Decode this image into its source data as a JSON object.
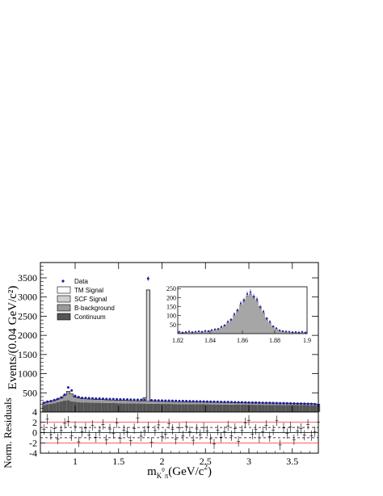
{
  "chart_data": [
    {
      "type": "area",
      "ylabel": "Events/(0.04 GeV/c²)",
      "xlim": [
        0.6,
        3.8
      ],
      "ylim": [
        0,
        3900
      ],
      "y_ticks": [
        "500",
        "1000",
        "1500",
        "2000",
        "2500",
        "3000",
        "3500"
      ],
      "legend": {
        "placement": "top-left",
        "entries": [
          {
            "label": "Data",
            "style": "marker",
            "color": "#1a1aa6"
          },
          {
            "label": "TM Signal",
            "style": "box",
            "color": "#ffffff"
          },
          {
            "label": "SCF Signal",
            "style": "box",
            "color": "#cfcfcf"
          },
          {
            "label": "B-background",
            "style": "box",
            "color": "#9a9a9a"
          },
          {
            "label": "Continuum",
            "style": "box",
            "color": "#555555"
          }
        ]
      },
      "bin_width": 0.04,
      "continuum": [
        180,
        200,
        215,
        230,
        255,
        275,
        300,
        310,
        280,
        265,
        255,
        250,
        250,
        245,
        245,
        240,
        240,
        238,
        235,
        235,
        232,
        230,
        228,
        226,
        225,
        223,
        222,
        220,
        220,
        218,
        216,
        215,
        214,
        212,
        212,
        210,
        210,
        208,
        207,
        206,
        205,
        204,
        203,
        202,
        202,
        200,
        200,
        199,
        198,
        197,
        196,
        195,
        195,
        194,
        193,
        192,
        192,
        191,
        190,
        190,
        189,
        188,
        188,
        187,
        186,
        186,
        185,
        185,
        184,
        183,
        183,
        182,
        182,
        181,
        180,
        180,
        178,
        175,
        170,
        165
      ],
      "b_background": [
        55,
        65,
        65,
        70,
        80,
        90,
        140,
        230,
        190,
        120,
        110,
        100,
        95,
        92,
        90,
        88,
        86,
        84,
        82,
        80,
        79,
        78,
        77,
        76,
        75,
        74,
        73,
        72,
        70,
        70,
        69,
        68,
        67,
        66,
        66,
        65,
        65,
        64,
        63,
        63,
        62,
        61,
        61,
        60,
        60,
        59,
        59,
        58,
        58,
        57,
        57,
        56,
        56,
        55,
        55,
        54,
        54,
        53,
        53,
        52,
        52,
        51,
        51,
        50,
        50,
        49,
        49,
        48,
        48,
        47,
        47,
        46,
        46,
        45,
        45,
        44,
        44,
        43,
        42,
        40
      ],
      "scf_signal": [
        0,
        0,
        0,
        0,
        0,
        0,
        0,
        0,
        0,
        0,
        0,
        0,
        0,
        0,
        0,
        0,
        0,
        0,
        0,
        0,
        0,
        0,
        0,
        0,
        0,
        0,
        0,
        0,
        0,
        80,
        2900,
        0,
        0,
        0,
        0,
        0,
        0,
        0,
        0,
        0,
        0,
        0,
        0,
        0,
        0,
        0,
        0,
        0,
        0,
        0,
        0,
        0,
        0,
        0,
        0,
        0,
        0,
        0,
        0,
        0,
        0,
        0,
        0,
        0,
        0,
        0,
        0,
        0,
        0,
        0,
        0,
        0,
        0,
        0,
        0,
        0,
        0,
        0,
        0,
        0
      ],
      "data": [
        240,
        270,
        285,
        310,
        340,
        380,
        450,
        640,
        560,
        420,
        390,
        370,
        365,
        360,
        355,
        350,
        350,
        345,
        340,
        338,
        336,
        332,
        330,
        328,
        326,
        322,
        320,
        318,
        316,
        314,
        3480,
        306,
        304,
        300,
        298,
        296,
        294,
        292,
        290,
        288,
        286,
        284,
        282,
        280,
        278,
        276,
        274,
        272,
        270,
        268,
        266,
        264,
        262,
        260,
        258,
        256,
        254,
        252,
        250,
        248,
        246,
        244,
        242,
        240,
        238,
        236,
        234,
        232,
        230,
        228,
        226,
        224,
        222,
        220,
        218,
        216,
        214,
        210,
        205,
        170
      ]
    },
    {
      "type": "histogram",
      "xlim": [
        1.82,
        1.9
      ],
      "ylim": [
        0,
        260
      ],
      "y_ticks": [
        "50",
        "100",
        "150",
        "200",
        "250"
      ],
      "x_ticks": [
        "1.82",
        "1.84",
        "1.86",
        "1.88",
        "1.9"
      ],
      "x": [
        1.821,
        1.823,
        1.825,
        1.827,
        1.829,
        1.831,
        1.833,
        1.835,
        1.837,
        1.839,
        1.841,
        1.843,
        1.845,
        1.847,
        1.849,
        1.851,
        1.853,
        1.855,
        1.857,
        1.859,
        1.861,
        1.863,
        1.865,
        1.867,
        1.869,
        1.871,
        1.873,
        1.875,
        1.877,
        1.879,
        1.881,
        1.883,
        1.885,
        1.887,
        1.889,
        1.891,
        1.893,
        1.895,
        1.897,
        1.899
      ],
      "model": [
        8,
        8,
        9,
        9,
        10,
        10,
        11,
        12,
        13,
        15,
        18,
        22,
        28,
        36,
        48,
        62,
        80,
        104,
        132,
        162,
        190,
        212,
        222,
        210,
        186,
        152,
        118,
        88,
        62,
        42,
        28,
        20,
        15,
        12,
        10,
        9,
        8,
        8,
        8,
        8
      ],
      "data": [
        10,
        6,
        9,
        12,
        8,
        11,
        13,
        10,
        15,
        14,
        20,
        24,
        26,
        38,
        46,
        66,
        78,
        108,
        130,
        168,
        186,
        220,
        230,
        206,
        190,
        148,
        122,
        84,
        66,
        40,
        30,
        18,
        14,
        12,
        11,
        8,
        9,
        7,
        10,
        6
      ]
    },
    {
      "type": "scatter",
      "ylabel": "Norm. Residuals",
      "xlabel": "m_{K⁰π}(GeV/c²)",
      "xlabel_main": "m",
      "xlabel_sub": "K",
      "xlabel_sup": "0",
      "xlabel_sub2": "π",
      "xlabel_tail": "(GeV/c",
      "xlabel_tail_sup": "2",
      "xlabel_close": ")",
      "ylim": [
        -4,
        4
      ],
      "y_ticks": [
        "-4",
        "-2",
        "0",
        "2",
        "4"
      ],
      "x_ticks": [
        "1",
        "1.5",
        "2",
        "2.5",
        "3",
        "3.5"
      ],
      "x_tick_values": [
        1,
        1.5,
        2,
        2.5,
        3,
        3.5
      ],
      "reference_lines": [
        {
          "y": 0,
          "style": "solid",
          "color": "#000000"
        },
        {
          "y": 1,
          "style": "dashed",
          "color": "#000000"
        },
        {
          "y": -1,
          "style": "dashed",
          "color": "#000000"
        },
        {
          "y": 2,
          "style": "solid",
          "color": "#ff2020"
        },
        {
          "y": -2,
          "style": "solid",
          "color": "#ff2020"
        }
      ],
      "residuals": [
        0.6,
        2.6,
        -0.4,
        0.8,
        -1.2,
        0.4,
        1.8,
        2.2,
        -0.6,
        1.2,
        -1.8,
        0.2,
        0.9,
        -0.5,
        1.4,
        -0.9,
        0.3,
        1.6,
        -1.4,
        0.7,
        -0.2,
        1.9,
        -1.1,
        0.5,
        0.1,
        -1.6,
        0.8,
        2.8,
        -0.7,
        0.3,
        1.1,
        -1.9,
        0.4,
        1.5,
        -0.8,
        -0.3,
        1.7,
        0.6,
        -1.3,
        0.9,
        -0.6,
        1.2,
        0.2,
        -1.5,
        0.7,
        -0.4,
        1.0,
        0.3,
        -1.2,
        -2.2,
        0.5,
        -0.9,
        0.2,
        1.3,
        -0.6,
        0.8,
        -1.7,
        0.4,
        1.9,
        2.4,
        -0.3,
        0.6,
        -1.0,
        0.2,
        1.4,
        -0.8,
        0.5,
        2.3,
        -2.4,
        0.9,
        -0.2,
        1.1,
        -1.4,
        0.3,
        0.8,
        -0.5,
        1.6,
        -0.6,
        0.2,
        2.0
      ]
    }
  ]
}
